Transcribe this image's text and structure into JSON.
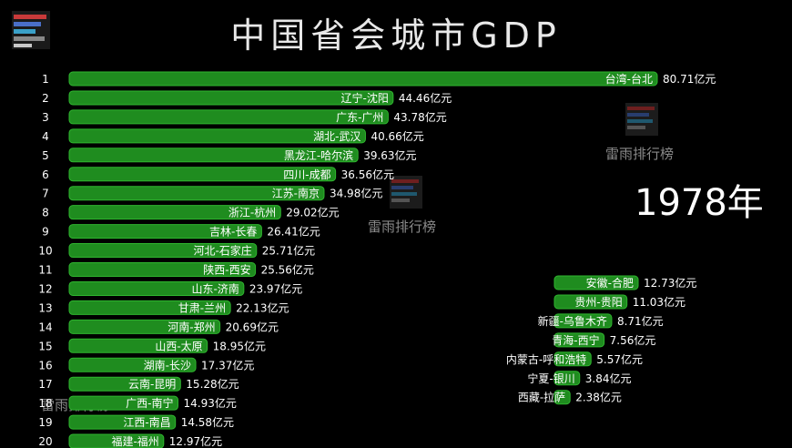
{
  "title": "中国省会城市GDP",
  "year_label": "1978年",
  "watermark": "雷雨排行榜",
  "colors": {
    "bar": "#1f8c1f",
    "bar_stroke": "#2fb52f",
    "background": "#000000",
    "text": "#ffffff"
  },
  "chart_data": {
    "type": "bar",
    "orientation": "horizontal",
    "title": "中国省会城市GDP",
    "unit": "亿元",
    "ranks": [
      1,
      2,
      3,
      4,
      5,
      6,
      7,
      8,
      9,
      10,
      11,
      12,
      13,
      14,
      15,
      16,
      17,
      18,
      19,
      20
    ],
    "categories": [
      "台湾-台北",
      "辽宁-沈阳",
      "广东-广州",
      "湖北-武汉",
      "黑龙江-哈尔滨",
      "四川-成都",
      "江苏-南京",
      "浙江-杭州",
      "吉林-长春",
      "河北-石家庄",
      "陕西-西安",
      "山东-济南",
      "甘肃-兰州",
      "河南-郑州",
      "山西-太原",
      "湖南-长沙",
      "云南-昆明",
      "广西-南宁",
      "江西-南昌",
      "福建-福州"
    ],
    "values": [
      80.71,
      44.46,
      43.78,
      40.66,
      39.63,
      36.56,
      34.98,
      29.02,
      26.41,
      25.71,
      25.56,
      23.97,
      22.13,
      20.69,
      18.95,
      17.37,
      15.28,
      14.93,
      14.58,
      12.97
    ],
    "value_labels": [
      "80.71亿元",
      "44.46亿元",
      "43.78亿元",
      "40.66亿元",
      "39.63亿元",
      "36.56亿元",
      "34.98亿元",
      "29.02亿元",
      "26.41亿元",
      "25.71亿元",
      "25.56亿元",
      "23.97亿元",
      "22.13亿元",
      "20.69亿元",
      "18.95亿元",
      "17.37亿元",
      "15.28亿元",
      "14.93亿元",
      "14.58亿元",
      "12.97亿元"
    ],
    "extra_categories": [
      "安徽-合肥",
      "贵州-贵阳",
      "新疆-乌鲁木齐",
      "青海-西宁",
      "内蒙古-呼和浩特",
      "宁夏-银川",
      "西藏-拉萨"
    ],
    "extra_values": [
      12.73,
      11.03,
      8.71,
      7.56,
      5.57,
      3.84,
      2.38
    ],
    "extra_value_labels": [
      "12.73亿元",
      "11.03亿元",
      "8.71亿元",
      "7.56亿元",
      "5.57亿元",
      "3.84亿元",
      "2.38亿元"
    ]
  }
}
